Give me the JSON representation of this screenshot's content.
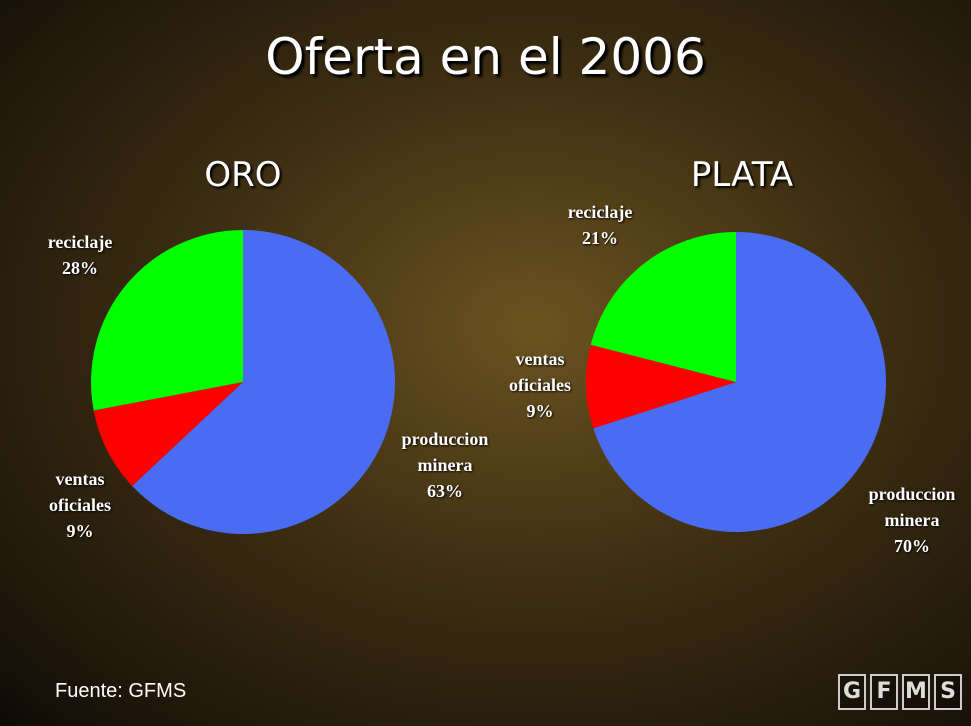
{
  "title": "Oferta en el 2006",
  "chart_data": [
    {
      "type": "pie",
      "title": "ORO",
      "categories": [
        "produccion minera",
        "ventas oficiales",
        "reciclaje"
      ],
      "values": [
        63,
        9,
        28
      ],
      "value_labels": [
        "63%",
        "9%",
        "28%"
      ],
      "colors": [
        "#4a6cf2",
        "#ff0000",
        "#00ff00"
      ]
    },
    {
      "type": "pie",
      "title": "PLATA",
      "categories": [
        "produccion minera",
        "ventas oficiales",
        "reciclaje"
      ],
      "values": [
        70,
        9,
        21
      ],
      "value_labels": [
        "70%",
        "9%",
        "21%"
      ],
      "colors": [
        "#4a6cf2",
        "#ff0000",
        "#00ff00"
      ]
    }
  ],
  "source": "Fuente: GFMS",
  "logo": [
    "G",
    "F",
    "M",
    "S"
  ]
}
